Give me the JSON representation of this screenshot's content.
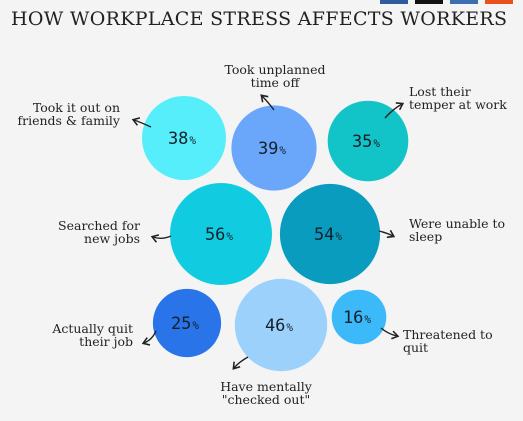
{
  "header": {
    "title": "HOW WORKPLACE STRESS AFFECTS WORKERS"
  },
  "share_bar": {
    "colors": [
      "#2f5d9c",
      "#111111",
      "#3b6fb0",
      "#e8501c"
    ]
  },
  "chart_data": {
    "type": "bubble",
    "unit": "%",
    "items": [
      {
        "label": "Took it out on\nfriends & family",
        "value": 38,
        "color": "#55eefa"
      },
      {
        "label": "Took unplanned\ntime off",
        "value": 39,
        "color": "#6aa7fa"
      },
      {
        "label": "Lost their\ntemper at work",
        "value": 35,
        "color": "#12c3c8"
      },
      {
        "label": "Searched for\nnew jobs",
        "value": 56,
        "color": "#11cce0"
      },
      {
        "label": "Were unable to\nsleep",
        "value": 54,
        "color": "#0a9cbe"
      },
      {
        "label": "Actually quit\ntheir job",
        "value": 25,
        "color": "#2874e8"
      },
      {
        "label": "Have mentally\n\"checked out\"",
        "value": 46,
        "color": "#9cd1fb"
      },
      {
        "label": "Threatened to\nquit",
        "value": 16,
        "color": "#3bb9f8"
      }
    ]
  }
}
